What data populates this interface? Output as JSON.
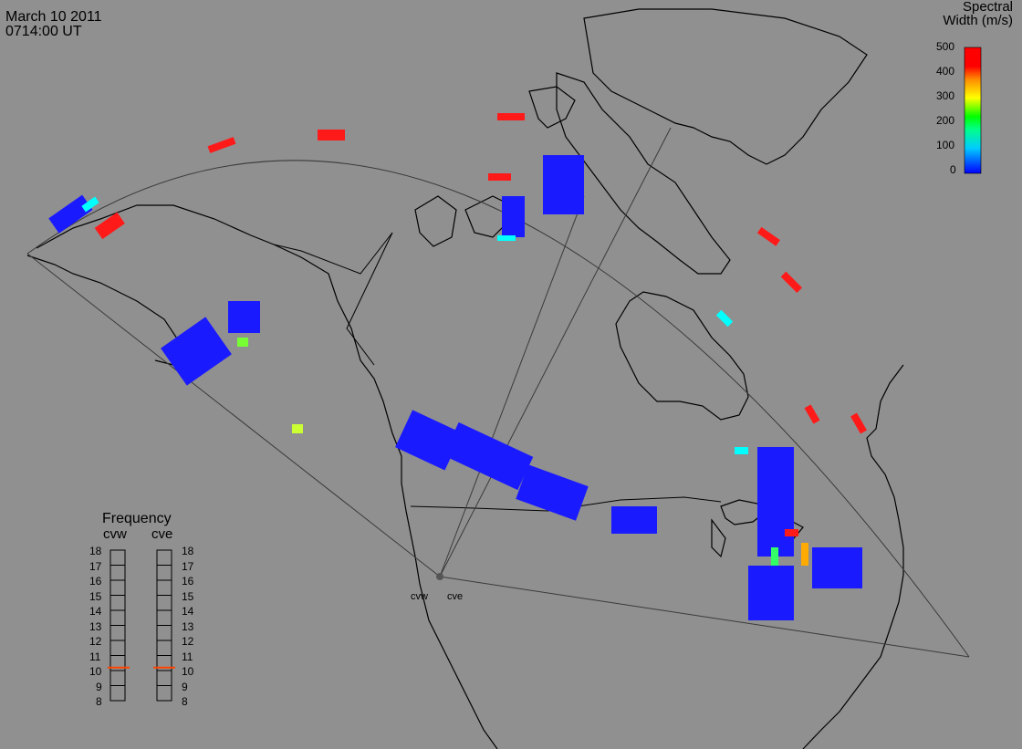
{
  "header": {
    "date": "March 10 2011",
    "time": "0714:00 UT"
  },
  "scale": {
    "title_line1": "Spectral",
    "title_line2": "Width (m/s)",
    "ticks": [
      "500",
      "400",
      "300",
      "200",
      "100",
      "0"
    ],
    "colors": [
      "#0000ff",
      "#00aaff",
      "#00ffff",
      "#00ff00",
      "#ffff00",
      "#ff9900",
      "#ff0000"
    ]
  },
  "frequency_panel": {
    "title": "Frequency",
    "radars": [
      "cvw",
      "cve"
    ],
    "levels": [
      "18",
      "17",
      "16",
      "15",
      "14",
      "13",
      "12",
      "11",
      "10",
      "9",
      "8"
    ],
    "current": [
      10.7,
      10.7
    ],
    "marker_color": "#ff4400"
  },
  "sites": [
    "cvw",
    "cve"
  ],
  "colors": {
    "background": "#909090",
    "coast": "#000000",
    "fov": "#3a3a3a",
    "low_width": "#1a1aff",
    "mid_width": "#00ffff",
    "high_width": "#ff1a1a"
  }
}
